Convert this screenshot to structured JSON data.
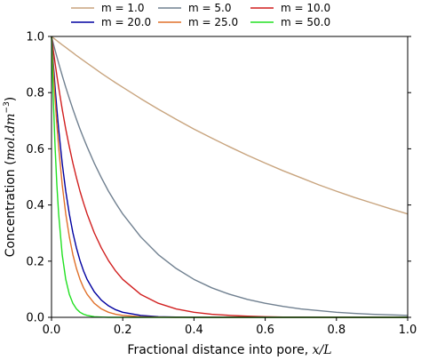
{
  "chart_data": {
    "type": "line",
    "title": "",
    "xlabel": {
      "prefix": "Fractional distance into pore, ",
      "math": "x/L"
    },
    "ylabel": {
      "prefix": "Concentration (",
      "math": "mol.dm",
      "sup": "−3",
      "suffix": ")"
    },
    "xlim": [
      0.0,
      1.0
    ],
    "ylim": [
      0.0,
      1.0
    ],
    "xticks": [
      0.0,
      0.2,
      0.4,
      0.6,
      0.8,
      1.0
    ],
    "xtick_labels": [
      "0.0",
      "0.2",
      "0.4",
      "0.6",
      "0.8",
      "1.0"
    ],
    "yticks": [
      0.0,
      0.2,
      0.4,
      0.6,
      0.8,
      1.0
    ],
    "ytick_labels": [
      "0.0",
      "0.2",
      "0.4",
      "0.6",
      "0.8",
      "1.0"
    ],
    "grid": false,
    "legend_position": "top, outside plot, 3 columns",
    "x": [
      0.0,
      0.005,
      0.01,
      0.015,
      0.02,
      0.03,
      0.04,
      0.05,
      0.06,
      0.07,
      0.08,
      0.09,
      0.1,
      0.12,
      0.14,
      0.16,
      0.18,
      0.2,
      0.25,
      0.3,
      0.35,
      0.4,
      0.45,
      0.5,
      0.55,
      0.6,
      0.65,
      0.7,
      0.75,
      0.8,
      0.85,
      0.9,
      0.95,
      1.0
    ],
    "series": [
      {
        "name": "m = 1.0",
        "color": "#c8a47e",
        "y": [
          1.0,
          0.995,
          0.99,
          0.985,
          0.98,
          0.97,
          0.961,
          0.951,
          0.942,
          0.932,
          0.923,
          0.914,
          0.905,
          0.887,
          0.869,
          0.852,
          0.835,
          0.819,
          0.779,
          0.741,
          0.705,
          0.67,
          0.638,
          0.607,
          0.577,
          0.549,
          0.522,
          0.497,
          0.472,
          0.449,
          0.427,
          0.407,
          0.387,
          0.368
        ]
      },
      {
        "name": "m = 5.0",
        "color": "#708090",
        "y": [
          1.0,
          0.975,
          0.951,
          0.928,
          0.905,
          0.861,
          0.819,
          0.779,
          0.741,
          0.705,
          0.67,
          0.638,
          0.607,
          0.549,
          0.497,
          0.449,
          0.407,
          0.368,
          0.287,
          0.223,
          0.174,
          0.135,
          0.105,
          0.082,
          0.064,
          0.05,
          0.039,
          0.03,
          0.024,
          0.018,
          0.014,
          0.011,
          0.009,
          0.007
        ]
      },
      {
        "name": "m = 10.0",
        "color": "#d11f1f",
        "y": [
          1.0,
          0.951,
          0.905,
          0.861,
          0.819,
          0.741,
          0.67,
          0.607,
          0.549,
          0.497,
          0.449,
          0.407,
          0.368,
          0.301,
          0.247,
          0.202,
          0.165,
          0.135,
          0.082,
          0.05,
          0.03,
          0.018,
          0.011,
          0.007,
          0.004,
          0.002,
          0.001,
          0.001,
          0.0,
          0.0,
          0.0,
          0.0,
          0.0,
          0.0
        ]
      },
      {
        "name": "m = 20.0",
        "color": "#0000a0",
        "y": [
          1.0,
          0.905,
          0.819,
          0.741,
          0.67,
          0.549,
          0.449,
          0.368,
          0.301,
          0.247,
          0.202,
          0.165,
          0.135,
          0.091,
          0.061,
          0.041,
          0.027,
          0.018,
          0.007,
          0.002,
          0.001,
          0.0,
          0.0,
          0.0,
          0.0,
          0.0,
          0.0,
          0.0,
          0.0,
          0.0,
          0.0,
          0.0,
          0.0,
          0.0
        ]
      },
      {
        "name": "m = 25.0",
        "color": "#e0702a",
        "y": [
          1.0,
          0.882,
          0.779,
          0.687,
          0.607,
          0.472,
          0.368,
          0.287,
          0.223,
          0.174,
          0.135,
          0.105,
          0.082,
          0.05,
          0.03,
          0.018,
          0.011,
          0.007,
          0.002,
          0.001,
          0.0,
          0.0,
          0.0,
          0.0,
          0.0,
          0.0,
          0.0,
          0.0,
          0.0,
          0.0,
          0.0,
          0.0,
          0.0,
          0.0
        ]
      },
      {
        "name": "m = 50.0",
        "color": "#22e022",
        "y": [
          1.0,
          0.779,
          0.607,
          0.472,
          0.368,
          0.223,
          0.135,
          0.082,
          0.05,
          0.03,
          0.018,
          0.011,
          0.007,
          0.002,
          0.001,
          0.0,
          0.0,
          0.0,
          0.0,
          0.0,
          0.0,
          0.0,
          0.0,
          0.0,
          0.0,
          0.0,
          0.0,
          0.0,
          0.0,
          0.0,
          0.0,
          0.0,
          0.0,
          0.0
        ]
      }
    ]
  }
}
